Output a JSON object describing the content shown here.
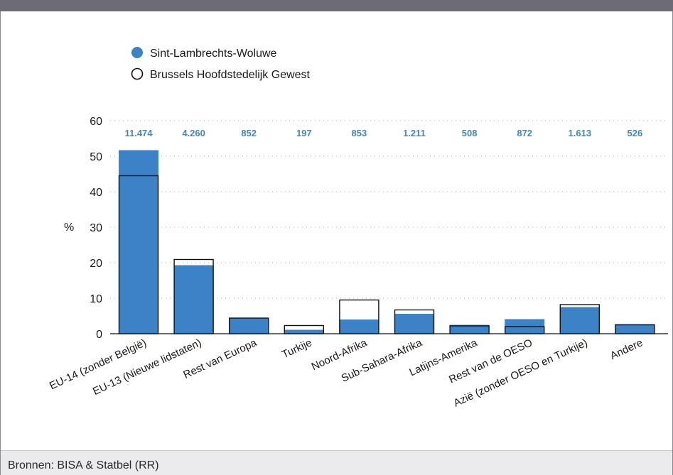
{
  "footer": {
    "source": "Bronnen: BISA & Statbel (RR)"
  },
  "colors": {
    "primary": "#3b82c6",
    "label": "#3c86cb",
    "outline": "#111111"
  },
  "chart_data": {
    "type": "bar",
    "ylabel": "%",
    "ylim": [
      0,
      60
    ],
    "yticks": [
      0,
      10,
      20,
      30,
      40,
      50,
      60
    ],
    "grid": "horizontal-dotted",
    "legend_position": "top-left",
    "categories": [
      "EU-14 (zonder België)",
      "EU-13 (Nieuwe lidstaten)",
      "Rest van Europa",
      "Turkije",
      "Noord-Afrika",
      "Sub-Sahara-Afrika",
      "Latijns-Amerika",
      "Rest van de OESO",
      "Azië (zonder OESO en Turkije)",
      "Andere"
    ],
    "data_labels": [
      "11.474",
      "4.260",
      "852",
      "197",
      "853",
      "1.211",
      "508",
      "872",
      "1.613",
      "526"
    ],
    "series": [
      {
        "name": "Sint-Lambrechts-Woluwe",
        "style": "filled",
        "values": [
          51.7,
          19.3,
          4.5,
          1.1,
          4.0,
          5.6,
          2.5,
          4.1,
          7.5,
          2.7
        ]
      },
      {
        "name": "Brussels Hoofdstedelijk Gewest",
        "style": "outline",
        "values": [
          44.5,
          20.9,
          4.4,
          2.3,
          9.5,
          6.7,
          2.2,
          2.0,
          8.2,
          2.5
        ]
      }
    ]
  }
}
